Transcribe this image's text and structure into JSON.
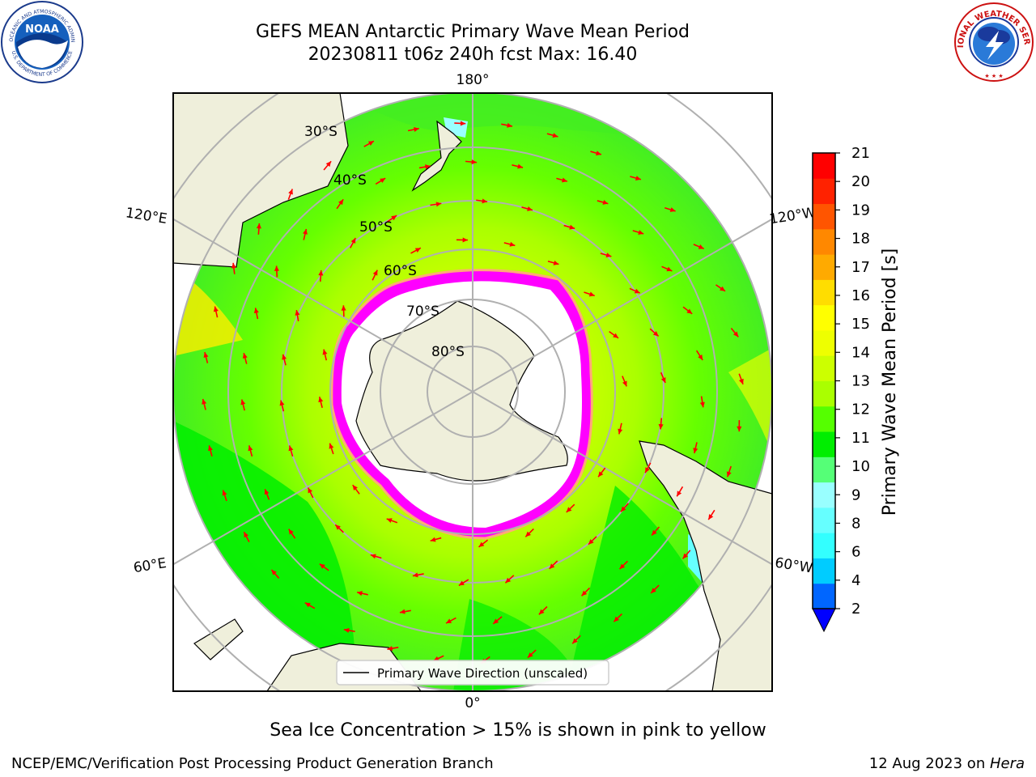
{
  "title": {
    "line1": "GEFS MEAN Antarctic Primary Wave Mean Period",
    "line2": "20230811 t06z 240h fcst   Max: 16.40"
  },
  "logos": {
    "left_icon": "noaa-logo-icon",
    "left_ring_text": "NATIONAL OCEANIC AND ATMOSPHERIC ADMINISTRATION",
    "left_bottom_text": "U.S. DEPARTMENT OF COMMERCE",
    "left_center_text": "NOAA",
    "right_icon": "nws-logo-icon",
    "right_ring_text": "NATIONAL WEATHER SERVICE"
  },
  "map": {
    "projection": "south-polar-stereographic",
    "longitude_labels": [
      "180°",
      "120°E",
      "120°W",
      "60°E",
      "60°W",
      "0°"
    ],
    "latitude_labels": [
      "30°S",
      "40°S",
      "50°S",
      "60°S",
      "70°S",
      "80°S"
    ],
    "legend_label": "Primary Wave Direction (unscaled)",
    "arrow_color": "#ff0000",
    "land_color": "#efefdb",
    "sea_ice_colors": [
      "#ff00ff",
      "#ffaa77",
      "#ffff55"
    ]
  },
  "colorbar": {
    "label": "Primary Wave Mean Period [s]",
    "ticks": [
      "2",
      "4",
      "6",
      "8",
      "9",
      "10",
      "11",
      "12",
      "13",
      "14",
      "15",
      "16",
      "17",
      "18",
      "19",
      "20",
      "21"
    ],
    "colors": [
      "#0066ff",
      "#00ccff",
      "#33ffff",
      "#66ffff",
      "#99ffff",
      "#55ff77",
      "#00ee00",
      "#55ff00",
      "#aaff00",
      "#ccff00",
      "#eeff00",
      "#ffff00",
      "#ffdd00",
      "#ffaa00",
      "#ff8800",
      "#ff5500",
      "#ff2200",
      "#ff0000"
    ],
    "under_color": "#0000ff"
  },
  "footer": {
    "sea_ice_note": "Sea Ice Concentration > 15% is shown in pink to yellow",
    "credit": "NCEP/EMC/Verification Post Processing Product Generation Branch",
    "date": "12 Aug 2023 on ",
    "host": "Hera"
  }
}
